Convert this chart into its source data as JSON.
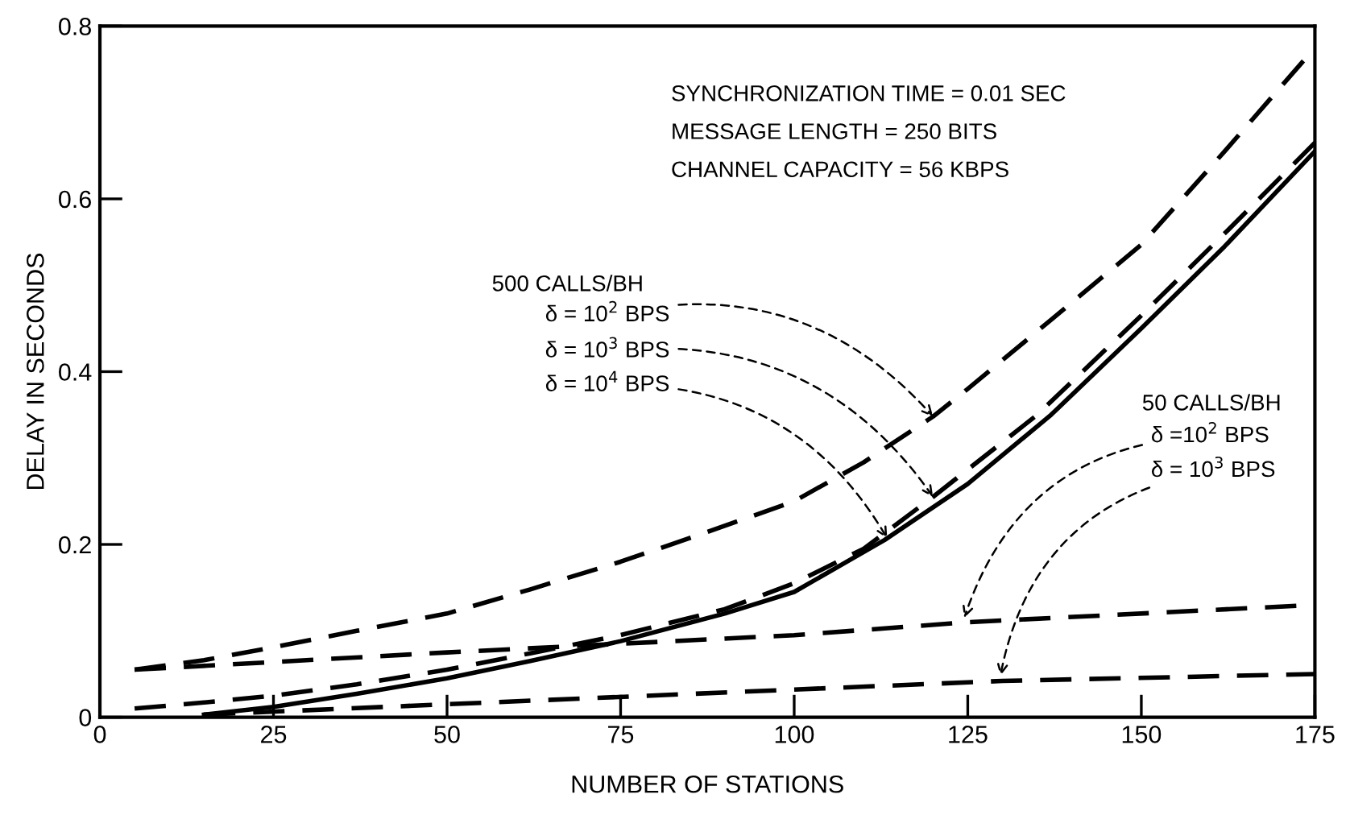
{
  "chart_data": {
    "type": "line",
    "xlabel": "NUMBER OF STATIONS",
    "ylabel": "DELAY IN SECONDS",
    "xlim": [
      0,
      175
    ],
    "xticks": [
      0,
      25,
      50,
      75,
      100,
      125,
      150,
      175
    ],
    "ylim": [
      0,
      0.8
    ],
    "yticks": [
      0,
      0.2,
      0.4,
      0.6,
      0.8
    ],
    "grid": false,
    "legend": false,
    "marker": "none",
    "series": [
      {
        "color": "#000000",
        "line_style": "dashed",
        "x": [
          5,
          15,
          25,
          37,
          50,
          62,
          75,
          87,
          100,
          110,
          120,
          125,
          137,
          150,
          162,
          175
        ],
        "values": [
          0.055,
          0.066,
          0.081,
          0.1,
          0.12,
          0.148,
          0.18,
          0.213,
          0.25,
          0.295,
          0.348,
          0.38,
          0.46,
          0.547,
          0.655,
          0.775
        ]
      },
      {
        "color": "#000000",
        "line_style": "dashed",
        "x": [
          5,
          15,
          25,
          37,
          50,
          62,
          75,
          90,
          100,
          110,
          120,
          135,
          150,
          162,
          175
        ],
        "values": [
          0.01,
          0.017,
          0.025,
          0.038,
          0.055,
          0.074,
          0.095,
          0.125,
          0.155,
          0.195,
          0.255,
          0.35,
          0.465,
          0.56,
          0.665
        ]
      },
      {
        "color": "#000000",
        "line_style": "solid",
        "x": [
          15,
          25,
          37,
          50,
          62,
          75,
          90,
          100,
          113,
          125,
          137,
          150,
          162,
          175
        ],
        "values": [
          0.003,
          0.012,
          0.027,
          0.045,
          0.065,
          0.088,
          0.12,
          0.145,
          0.205,
          0.27,
          0.35,
          0.45,
          0.545,
          0.655
        ]
      },
      {
        "color": "#000000",
        "line_style": "dashed",
        "x": [
          5,
          50,
          100,
          125,
          175
        ],
        "values": [
          0.055,
          0.075,
          0.095,
          0.11,
          0.13
        ]
      },
      {
        "color": "#000000",
        "line_style": "dashed",
        "x": [
          15,
          50,
          100,
          130,
          175
        ],
        "values": [
          0.003,
          0.015,
          0.032,
          0.042,
          0.05
        ]
      }
    ],
    "annotations": [
      "SYNCHRONIZATION TIME = 0.01 SEC",
      "MESSAGE LENGTH = 250 BITS",
      "CHANNEL CAPACITY = 56 KBPS",
      "500 CALLS/BH",
      {
        "text": "δ = 10$^{2}$ BPS",
        "x": 120,
        "y": 0.348
      },
      {
        "text": "δ = 10$^{3}$ BPS",
        "x": 120,
        "y": 0.255
      },
      {
        "text": "δ = 10$^{4}$ BPS",
        "x": 113.4,
        "y": 0.207
      },
      "50 CALLS/BH",
      {
        "text": "δ =10$^{2}$ BPS",
        "x": 124.5,
        "y": 0.115
      },
      {
        "text": "δ = 10$^{3}$ BPS",
        "x": 129.7,
        "y": 0.048
      }
    ]
  }
}
